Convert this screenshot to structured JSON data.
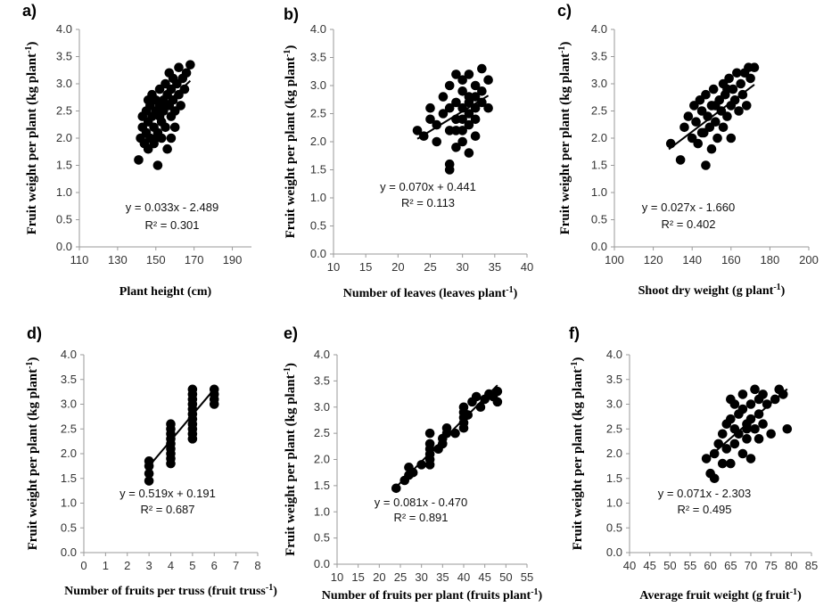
{
  "chart_data": [
    {
      "panel": "a)",
      "type": "scatter",
      "xlabel": "Plant height (cm)",
      "xlabel_sup": "",
      "xlabel_tail": "",
      "ylabel": "Fruit weight per plant (kg plant",
      "ylabel_sup": "-1",
      "ylabel_tail": ")",
      "xlim": [
        110,
        200
      ],
      "xticks": [
        110,
        130,
        150,
        170,
        190
      ],
      "ylim": [
        0,
        4
      ],
      "yticks": [
        0,
        0.5,
        1,
        1.5,
        2,
        2.5,
        3,
        3.5,
        4
      ],
      "equation": "y = 0.033x - 2.489",
      "r2": "R² = 0.301",
      "trendline": {
        "slope": 0.033,
        "intercept": -2.489,
        "x_range": [
          143,
          168
        ]
      },
      "points": [
        [
          141,
          1.6
        ],
        [
          142,
          2.0
        ],
        [
          143,
          2.2
        ],
        [
          143,
          2.4
        ],
        [
          144,
          1.9
        ],
        [
          145,
          2.1
        ],
        [
          145,
          2.5
        ],
        [
          146,
          2.3
        ],
        [
          146,
          1.8
        ],
        [
          147,
          2.6
        ],
        [
          147,
          2.0
        ],
        [
          148,
          2.4
        ],
        [
          148,
          2.8
        ],
        [
          149,
          2.2
        ],
        [
          149,
          1.9
        ],
        [
          150,
          2.5
        ],
        [
          150,
          2.7
        ],
        [
          151,
          2.1
        ],
        [
          151,
          1.5
        ],
        [
          152,
          2.6
        ],
        [
          152,
          2.9
        ],
        [
          153,
          2.3
        ],
        [
          153,
          2.0
        ],
        [
          154,
          2.7
        ],
        [
          154,
          2.5
        ],
        [
          155,
          3.0
        ],
        [
          155,
          2.2
        ],
        [
          156,
          2.8
        ],
        [
          156,
          1.8
        ],
        [
          157,
          2.6
        ],
        [
          157,
          3.2
        ],
        [
          158,
          2.4
        ],
        [
          158,
          2.9
        ],
        [
          159,
          3.1
        ],
        [
          159,
          2.7
        ],
        [
          160,
          2.5
        ],
        [
          160,
          2.2
        ],
        [
          161,
          3.0
        ],
        [
          162,
          2.8
        ],
        [
          162,
          3.3
        ],
        [
          163,
          2.6
        ],
        [
          164,
          3.1
        ],
        [
          165,
          2.9
        ],
        [
          166,
          3.2
        ],
        [
          168,
          3.35
        ],
        [
          150,
          2.0
        ],
        [
          155,
          2.6
        ],
        [
          158,
          2.0
        ],
        [
          146,
          2.7
        ],
        [
          152,
          2.4
        ]
      ]
    },
    {
      "panel": "b)",
      "type": "scatter",
      "xlabel": "Number of leaves (leaves plant",
      "xlabel_sup": "-1",
      "xlabel_tail": ")",
      "ylabel": "Fruit weight per plant (kg plant",
      "ylabel_sup": "-1",
      "ylabel_tail": ")",
      "xlim": [
        10,
        40
      ],
      "xticks": [
        10,
        15,
        20,
        25,
        30,
        35,
        40
      ],
      "ylim": [
        0,
        4
      ],
      "yticks": [
        0,
        0.5,
        1,
        1.5,
        2,
        2.5,
        3,
        3.5,
        4
      ],
      "equation": "y = 0.070x + 0.441",
      "r2": "R² = 0.113",
      "trendline": {
        "slope": 0.07,
        "intercept": 0.441,
        "x_range": [
          23,
          34
        ]
      },
      "points": [
        [
          23,
          2.2
        ],
        [
          24,
          2.1
        ],
        [
          25,
          2.4
        ],
        [
          25,
          2.6
        ],
        [
          26,
          2.3
        ],
        [
          26,
          2.0
        ],
        [
          27,
          2.5
        ],
        [
          27,
          2.8
        ],
        [
          28,
          2.2
        ],
        [
          28,
          1.5
        ],
        [
          28,
          1.6
        ],
        [
          28,
          3.0
        ],
        [
          29,
          2.7
        ],
        [
          29,
          2.4
        ],
        [
          29,
          1.9
        ],
        [
          29,
          3.2
        ],
        [
          30,
          2.6
        ],
        [
          30,
          2.2
        ],
        [
          30,
          2.9
        ],
        [
          30,
          2.0
        ],
        [
          30,
          3.1
        ],
        [
          31,
          2.5
        ],
        [
          31,
          2.8
        ],
        [
          31,
          2.3
        ],
        [
          31,
          1.8
        ],
        [
          31,
          3.2
        ],
        [
          32,
          2.6
        ],
        [
          32,
          3.0
        ],
        [
          32,
          2.4
        ],
        [
          32,
          2.1
        ],
        [
          33,
          2.9
        ],
        [
          33,
          2.7
        ],
        [
          33,
          3.3
        ],
        [
          34,
          2.6
        ],
        [
          34,
          3.1
        ],
        [
          28,
          2.6
        ],
        [
          29,
          2.2
        ],
        [
          30,
          2.4
        ],
        [
          31,
          2.7
        ],
        [
          32,
          2.8
        ]
      ]
    },
    {
      "panel": "c)",
      "type": "scatter",
      "xlabel": "Shoot dry weight (g plant",
      "xlabel_sup": "-1",
      "xlabel_tail": ")",
      "ylabel": "Fruit weight per plant (kg plant",
      "ylabel_sup": "-1",
      "ylabel_tail": ")",
      "xlim": [
        100,
        200
      ],
      "xticks": [
        100,
        120,
        140,
        160,
        180,
        200
      ],
      "ylim": [
        0,
        4
      ],
      "yticks": [
        0,
        0.5,
        1,
        1.5,
        2,
        2.5,
        3,
        3.5,
        4
      ],
      "equation": "y = 0.027x - 1.660",
      "r2": "R² = 0.402",
      "trendline": {
        "slope": 0.027,
        "intercept": -1.66,
        "x_range": [
          128,
          172
        ]
      },
      "points": [
        [
          129,
          1.9
        ],
        [
          134,
          1.6
        ],
        [
          136,
          2.2
        ],
        [
          138,
          2.4
        ],
        [
          140,
          2.0
        ],
        [
          141,
          2.6
        ],
        [
          142,
          2.3
        ],
        [
          143,
          1.9
        ],
        [
          144,
          2.7
        ],
        [
          145,
          2.5
        ],
        [
          146,
          2.1
        ],
        [
          147,
          1.5
        ],
        [
          147,
          2.8
        ],
        [
          148,
          2.4
        ],
        [
          149,
          2.2
        ],
        [
          150,
          2.6
        ],
        [
          150,
          1.8
        ],
        [
          151,
          2.9
        ],
        [
          152,
          2.3
        ],
        [
          153,
          2.0
        ],
        [
          154,
          2.7
        ],
        [
          155,
          2.5
        ],
        [
          156,
          3.0
        ],
        [
          156,
          2.2
        ],
        [
          157,
          2.8
        ],
        [
          158,
          2.4
        ],
        [
          159,
          3.1
        ],
        [
          160,
          2.6
        ],
        [
          160,
          2.0
        ],
        [
          161,
          2.9
        ],
        [
          162,
          2.7
        ],
        [
          163,
          3.2
        ],
        [
          164,
          2.5
        ],
        [
          165,
          3.0
        ],
        [
          166,
          2.8
        ],
        [
          167,
          3.2
        ],
        [
          168,
          2.6
        ],
        [
          169,
          3.3
        ],
        [
          170,
          3.1
        ],
        [
          172,
          3.3
        ],
        [
          145,
          2.1
        ],
        [
          152,
          2.6
        ],
        [
          158,
          2.9
        ]
      ]
    },
    {
      "panel": "d)",
      "type": "scatter",
      "xlabel": "Number of fruits per truss (fruit truss",
      "xlabel_sup": "-1",
      "xlabel_tail": ")",
      "ylabel": "Fruit weight per plant (kg plant",
      "ylabel_sup": "-1",
      "ylabel_tail": ")",
      "xlim": [
        0,
        8
      ],
      "xticks": [
        0,
        1,
        2,
        3,
        4,
        5,
        6,
        7,
        8
      ],
      "ylim": [
        0,
        4
      ],
      "yticks": [
        0,
        0.5,
        1,
        1.5,
        2,
        2.5,
        3,
        3.5,
        4
      ],
      "equation": "y = 0.519x + 0.191",
      "r2": "R² = 0.687",
      "trendline": {
        "slope": 0.519,
        "intercept": 0.191,
        "x_range": [
          3,
          6
        ]
      },
      "points": [
        [
          3,
          1.45
        ],
        [
          3,
          1.6
        ],
        [
          3,
          1.75
        ],
        [
          3,
          1.85
        ],
        [
          4,
          1.8
        ],
        [
          4,
          1.9
        ],
        [
          4,
          2.0
        ],
        [
          4,
          2.1
        ],
        [
          4,
          2.2
        ],
        [
          4,
          2.3
        ],
        [
          4,
          2.4
        ],
        [
          4,
          2.5
        ],
        [
          4,
          2.6
        ],
        [
          5,
          2.3
        ],
        [
          5,
          2.4
        ],
        [
          5,
          2.5
        ],
        [
          5,
          2.6
        ],
        [
          5,
          2.7
        ],
        [
          5,
          2.8
        ],
        [
          5,
          2.9
        ],
        [
          5,
          3.0
        ],
        [
          5,
          3.1
        ],
        [
          5,
          3.2
        ],
        [
          5,
          3.3
        ],
        [
          6,
          3.0
        ],
        [
          6,
          3.1
        ],
        [
          6,
          3.2
        ],
        [
          6,
          3.3
        ]
      ]
    },
    {
      "panel": "e)",
      "type": "scatter",
      "xlabel": "Number of fruits per plant (fruits plant",
      "xlabel_sup": "-1",
      "xlabel_tail": ")",
      "ylabel": "Fruit weight per plant (kg plant",
      "ylabel_sup": "-1",
      "ylabel_tail": ")",
      "xlim": [
        10,
        55
      ],
      "xticks": [
        10,
        15,
        20,
        25,
        30,
        35,
        40,
        45,
        50,
        55
      ],
      "ylim": [
        0,
        4
      ],
      "yticks": [
        0,
        0.5,
        1,
        1.5,
        2,
        2.5,
        3,
        3.5,
        4
      ],
      "equation": "y = 0.081x - 0.470",
      "r2": "R² = 0.891",
      "trendline": {
        "slope": 0.081,
        "intercept": -0.47,
        "x_range": [
          24,
          48
        ]
      },
      "points": [
        [
          24,
          1.45
        ],
        [
          26,
          1.6
        ],
        [
          27,
          1.7
        ],
        [
          27,
          1.85
        ],
        [
          28,
          1.75
        ],
        [
          30,
          1.9
        ],
        [
          32,
          1.9
        ],
        [
          32,
          2.0
        ],
        [
          32,
          2.1
        ],
        [
          32,
          2.2
        ],
        [
          32,
          2.3
        ],
        [
          32,
          2.5
        ],
        [
          34,
          2.2
        ],
        [
          35,
          2.3
        ],
        [
          35,
          2.4
        ],
        [
          36,
          2.5
        ],
        [
          36,
          2.6
        ],
        [
          38,
          2.5
        ],
        [
          40,
          2.6
        ],
        [
          40,
          2.7
        ],
        [
          40,
          2.8
        ],
        [
          40,
          2.9
        ],
        [
          40,
          3.0
        ],
        [
          41,
          2.85
        ],
        [
          42,
          3.1
        ],
        [
          43,
          3.2
        ],
        [
          44,
          3.0
        ],
        [
          45,
          3.15
        ],
        [
          46,
          3.25
        ],
        [
          47,
          3.2
        ],
        [
          48,
          3.1
        ],
        [
          48,
          3.3
        ]
      ]
    },
    {
      "panel": "f)",
      "type": "scatter",
      "xlabel": "Average fruit  weight (g fruit",
      "xlabel_sup": "-1",
      "xlabel_tail": ")",
      "ylabel": "Fruit weight per plant (kg plant",
      "ylabel_sup": "-1",
      "ylabel_tail": ")",
      "xlim": [
        40,
        85
      ],
      "xticks": [
        40,
        45,
        50,
        55,
        60,
        65,
        70,
        75,
        80,
        85
      ],
      "ylim": [
        0,
        4
      ],
      "yticks": [
        0,
        0.5,
        1,
        1.5,
        2,
        2.5,
        3,
        3.5,
        4
      ],
      "equation": "y = 0.071x - 2.303",
      "r2": "R² = 0.495",
      "trendline": {
        "slope": 0.071,
        "intercept": -2.303,
        "x_range": [
          59,
          79
        ]
      },
      "points": [
        [
          59,
          1.9
        ],
        [
          60,
          1.6
        ],
        [
          61,
          1.5
        ],
        [
          61,
          2.0
        ],
        [
          62,
          2.2
        ],
        [
          63,
          1.8
        ],
        [
          63,
          2.4
        ],
        [
          64,
          2.6
        ],
        [
          64,
          2.1
        ],
        [
          65,
          2.7
        ],
        [
          65,
          1.8
        ],
        [
          65,
          3.1
        ],
        [
          66,
          2.5
        ],
        [
          66,
          2.2
        ],
        [
          67,
          2.8
        ],
        [
          67,
          2.4
        ],
        [
          68,
          2.9
        ],
        [
          68,
          2.0
        ],
        [
          68,
          3.2
        ],
        [
          69,
          2.6
        ],
        [
          69,
          2.3
        ],
        [
          70,
          3.0
        ],
        [
          70,
          2.7
        ],
        [
          70,
          1.9
        ],
        [
          71,
          3.3
        ],
        [
          71,
          2.5
        ],
        [
          72,
          3.1
        ],
        [
          72,
          2.8
        ],
        [
          73,
          2.6
        ],
        [
          73,
          3.2
        ],
        [
          74,
          3.0
        ],
        [
          75,
          2.4
        ],
        [
          76,
          3.1
        ],
        [
          77,
          3.3
        ],
        [
          78,
          3.2
        ],
        [
          79,
          2.5
        ],
        [
          66,
          3.0
        ],
        [
          69,
          2.5
        ],
        [
          72,
          2.3
        ]
      ]
    }
  ]
}
